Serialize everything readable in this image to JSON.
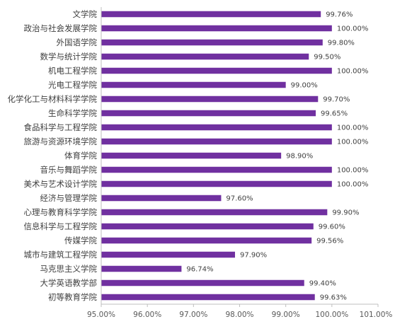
{
  "chart_data": {
    "type": "bar",
    "orientation": "horizontal",
    "title": "",
    "xlabel": "",
    "ylabel": "",
    "xlim": [
      0.95,
      1.01
    ],
    "ticks": [
      0.95,
      0.96,
      0.97,
      0.98,
      0.99,
      1.0,
      1.01
    ],
    "tick_labels": [
      "95.00%",
      "96.00%",
      "97.00%",
      "98.00%",
      "99.00%",
      "100.00%",
      "101.00%"
    ],
    "grid": false,
    "legend": "none",
    "bar_color": "#7030a0",
    "categories": [
      "文学院",
      "政治与社会发展学院",
      "外国语学院",
      "数学与统计学院",
      "机电工程学院",
      "光电工程学院",
      "化学化工与材料科学学院",
      "生命科学学院",
      "食品科学与工程学院",
      "旅游与资源环境学院",
      "体育学院",
      "音乐与舞蹈学院",
      "美术与艺术设计学院",
      "经济与管理学院",
      "心理与教育科学学院",
      "信息科学与工程学院",
      "传媒学院",
      "城市与建筑工程学院",
      "马克思主义学院",
      "大学英语教学部",
      "初等教育学院"
    ],
    "values": [
      0.9976,
      1.0,
      0.998,
      0.995,
      1.0,
      0.99,
      0.997,
      0.9965,
      1.0,
      1.0,
      0.989,
      1.0,
      1.0,
      0.976,
      0.999,
      0.996,
      0.9956,
      0.979,
      0.9674,
      0.994,
      0.9963
    ],
    "value_labels": [
      "99.76%",
      "100.00%",
      "99.80%",
      "99.50%",
      "100.00%",
      "99.00%",
      "99.70%",
      "99.65%",
      "100.00%",
      "100.00%",
      "98.90%",
      "100.00%",
      "100.00%",
      "97.60%",
      "99.90%",
      "99.60%",
      "99.56%",
      "97.90%",
      "96.74%",
      "99.40%",
      "99.63%"
    ]
  }
}
